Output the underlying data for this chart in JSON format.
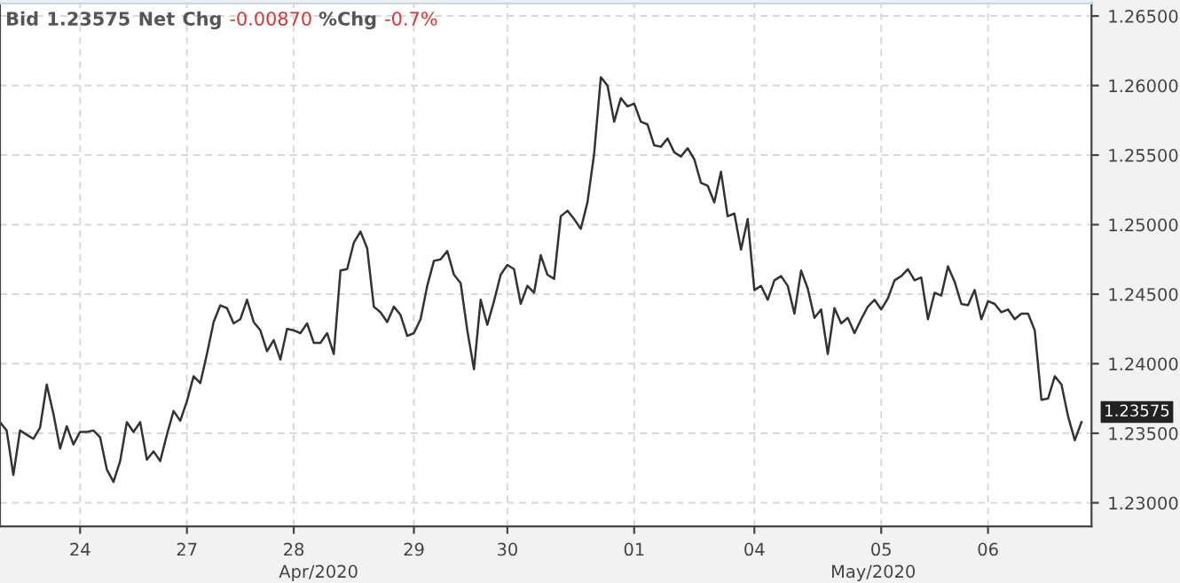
{
  "chart_data": {
    "type": "line",
    "title": "Bid 1.23575 Net Chg -0.00870 %Chg -0.7%",
    "categories": [
      null,
      null,
      null,
      null,
      null,
      null,
      null,
      null,
      null,
      null,
      null,
      null,
      "24",
      null,
      null,
      null,
      null,
      null,
      null,
      null,
      null,
      null,
      null,
      null,
      null,
      null,
      null,
      null,
      "27",
      null,
      null,
      null,
      null,
      null,
      null,
      null,
      null,
      null,
      null,
      null,
      null,
      null,
      null,
      null,
      "28",
      null,
      null,
      null,
      null,
      null,
      null,
      null,
      null,
      null,
      null,
      null,
      null,
      null,
      null,
      null,
      null,
      null,
      "29",
      null,
      null,
      null,
      null,
      null,
      null,
      null,
      null,
      null,
      null,
      null,
      null,
      null,
      "30",
      null,
      null,
      null,
      null,
      null,
      null,
      null,
      null,
      null,
      null,
      null,
      null,
      null,
      null,
      null,
      null,
      null,
      null,
      "01",
      null,
      null,
      null,
      null,
      null,
      null,
      null,
      null,
      null,
      null,
      null,
      null,
      null,
      null,
      null,
      null,
      null,
      "04",
      null,
      null,
      null,
      null,
      null,
      null,
      null,
      null,
      null,
      null,
      null,
      null,
      null,
      null,
      null,
      null,
      null,
      null,
      "05",
      null,
      null,
      null,
      null,
      null,
      null,
      null,
      null,
      null,
      null,
      null,
      null,
      null,
      null,
      null,
      "06",
      null,
      null,
      null,
      null,
      null,
      null,
      null,
      null,
      null,
      null,
      null,
      null,
      null,
      null
    ],
    "series": [
      {
        "color": "#333333",
        "values": [
          1.2358,
          1.2352,
          1.232,
          1.2352,
          1.2349,
          1.2346,
          1.2354,
          1.2385,
          1.2364,
          1.2339,
          1.2355,
          1.2342,
          1.2351,
          1.2351,
          1.2352,
          1.2347,
          1.2324,
          1.2315,
          1.233,
          1.2358,
          1.2351,
          1.2358,
          1.2331,
          1.2337,
          1.233,
          1.2349,
          1.2366,
          1.2359,
          1.2373,
          1.2391,
          1.2386,
          1.2407,
          1.243,
          1.2442,
          1.244,
          1.2429,
          1.2432,
          1.2446,
          1.243,
          1.2424,
          1.2409,
          1.2417,
          1.2403,
          1.2425,
          1.2424,
          1.2422,
          1.2429,
          1.2415,
          1.2415,
          1.2422,
          1.2407,
          1.2467,
          1.2468,
          1.2487,
          1.2495,
          1.2483,
          1.2441,
          1.2437,
          1.243,
          1.2441,
          1.2435,
          1.242,
          1.2422,
          1.2432,
          1.2456,
          1.2474,
          1.2475,
          1.2481,
          1.2464,
          1.2458,
          1.2424,
          1.2396,
          1.2446,
          1.2428,
          1.2445,
          1.2464,
          1.2471,
          1.2468,
          1.2443,
          1.2456,
          1.2451,
          1.2478,
          1.2464,
          1.2461,
          1.2506,
          1.251,
          1.2504,
          1.2497,
          1.2516,
          1.2551,
          1.2606,
          1.26,
          1.2574,
          1.2591,
          1.2585,
          1.2587,
          1.2574,
          1.2572,
          1.2557,
          1.2556,
          1.2562,
          1.2552,
          1.2549,
          1.2555,
          1.2547,
          1.253,
          1.2528,
          1.2516,
          1.2538,
          1.2506,
          1.2508,
          1.2482,
          1.2504,
          1.2453,
          1.2456,
          1.2446,
          1.246,
          1.2463,
          1.2456,
          1.2436,
          1.2467,
          1.2454,
          1.2433,
          1.2439,
          1.2407,
          1.244,
          1.2429,
          1.2433,
          1.2422,
          1.2432,
          1.2441,
          1.2446,
          1.2439,
          1.2447,
          1.246,
          1.2463,
          1.2468,
          1.246,
          1.2462,
          1.2432,
          1.2451,
          1.2449,
          1.247,
          1.2459,
          1.2443,
          1.2442,
          1.2453,
          1.2432,
          1.2445,
          1.2443,
          1.2437,
          1.2439,
          1.2432,
          1.2436,
          1.2436,
          1.2424,
          1.2374,
          1.2375,
          1.2391,
          1.2385,
          1.2362,
          1.2345,
          1.2358
        ]
      }
    ],
    "ylim": [
      1.2283,
      1.2659
    ],
    "yticks": [
      {
        "value": 1.23,
        "label": "1.23000"
      },
      {
        "value": 1.235,
        "label": "1.23500"
      },
      {
        "value": 1.24,
        "label": "1.24000"
      },
      {
        "value": 1.245,
        "label": "1.24500"
      },
      {
        "value": 1.25,
        "label": "1.25000"
      },
      {
        "value": 1.255,
        "label": "1.25500"
      },
      {
        "value": 1.26,
        "label": "1.26000"
      },
      {
        "value": 1.265,
        "label": "1.26500"
      }
    ],
    "grid": true,
    "line_style": "solid",
    "marker": "none",
    "annotations": [
      "Apr/2020",
      "May/2020",
      "1.23575"
    ]
  }
}
